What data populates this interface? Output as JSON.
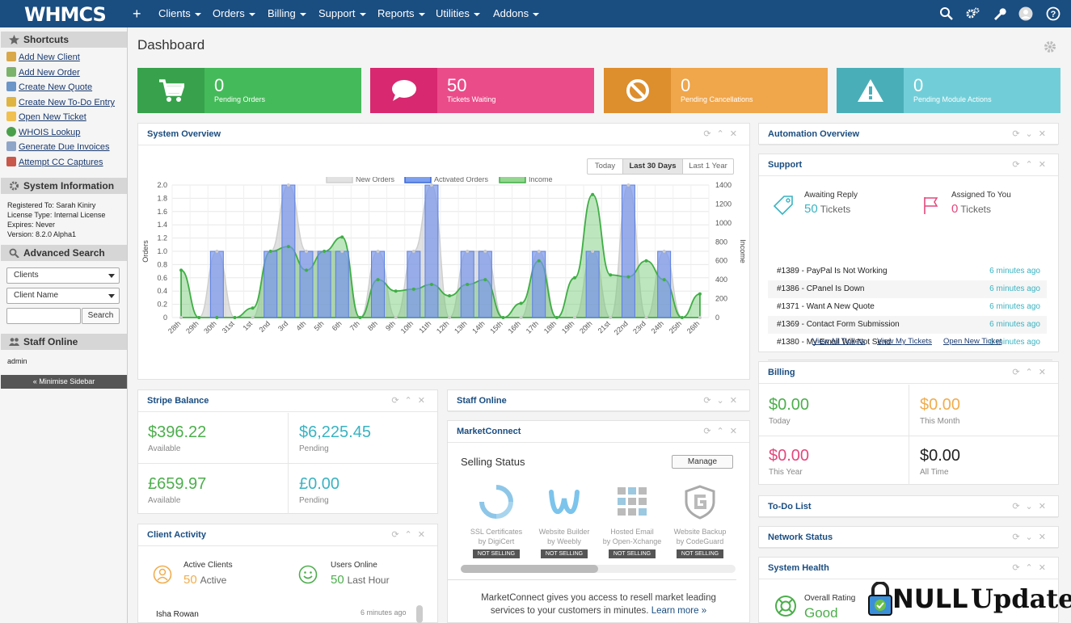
{
  "topnav": {
    "logo": "WHMCS",
    "plus": "+",
    "menus": [
      "Clients",
      "Orders",
      "Billing",
      "Support",
      "Reports",
      "Utilities",
      "Addons"
    ]
  },
  "sidebar": {
    "shortcuts_title": "Shortcuts",
    "shortcuts": [
      "Add New Client",
      "Add New Order",
      "Create New Quote",
      "Create New To-Do Entry",
      "Open New Ticket",
      "WHOIS Lookup",
      "Generate Due Invoices",
      "Attempt CC Captures"
    ],
    "sysinfo_title": "System Information",
    "sysinfo": [
      "Registered To: Sarah Kiniry",
      "License Type: Internal License",
      "Expires: Never",
      "Version: 8.2.0 Alpha1"
    ],
    "search_title": "Advanced Search",
    "search_type": "Clients",
    "search_field": "Client Name",
    "search_button": "Search",
    "staff_title": "Staff Online",
    "staff_name": "admin",
    "minimise": "« Minimise Sidebar"
  },
  "page_title": "Dashboard",
  "stats": [
    {
      "value": "0",
      "label": "Pending Orders",
      "color": "#45ba5a",
      "dark": "#37a24b",
      "icon": "cart-icon"
    },
    {
      "value": "50",
      "label": "Tickets Waiting",
      "color": "#ea4c89",
      "dark": "#d8286f",
      "icon": "comment-icon"
    },
    {
      "value": "0",
      "label": "Pending Cancellations",
      "color": "#f0a64b",
      "dark": "#dd8e2d",
      "icon": "ban-icon"
    },
    {
      "value": "0",
      "label": "Pending Module Actions",
      "color": "#71ced8",
      "dark": "#4aaeb8",
      "icon": "warning-icon"
    }
  ],
  "system_overview": {
    "title": "System Overview",
    "ranges": [
      "Today",
      "Last 30 Days",
      "Last 1 Year"
    ],
    "active_range": "Last 30 Days"
  },
  "chart_data": {
    "type": "line",
    "legend": [
      "New Orders",
      "Activated Orders",
      "Income"
    ],
    "x": [
      "28th",
      "29th",
      "30th",
      "31st",
      "1st",
      "2nd",
      "3rd",
      "4th",
      "5th",
      "6th",
      "7th",
      "8th",
      "9th",
      "10th",
      "11th",
      "12th",
      "13th",
      "14th",
      "15th",
      "16th",
      "17th",
      "18th",
      "19th",
      "20th",
      "21st",
      "22nd",
      "23rd",
      "24th",
      "25th",
      "26th"
    ],
    "series": [
      {
        "name": "New Orders",
        "type": "area",
        "values": [
          0,
          0,
          1,
          0,
          0,
          1,
          2,
          1,
          1,
          1,
          0,
          1,
          0,
          1,
          2,
          0,
          1,
          1,
          0,
          0,
          1,
          0,
          0,
          1,
          0,
          2,
          0,
          1,
          0,
          0
        ]
      },
      {
        "name": "Activated Orders",
        "type": "bar",
        "values": [
          0,
          0,
          1,
          0,
          0,
          1,
          2,
          1,
          1,
          1,
          0,
          1,
          0,
          1,
          2,
          0,
          1,
          1,
          0,
          0,
          1,
          0,
          0,
          1,
          0,
          2,
          0,
          1,
          0,
          0
        ]
      },
      {
        "name": "Income",
        "type": "area",
        "axis": "right",
        "values": [
          500,
          0,
          0,
          0,
          100,
          700,
          750,
          500,
          700,
          850,
          0,
          400,
          280,
          300,
          350,
          230,
          350,
          400,
          0,
          150,
          600,
          0,
          420,
          1300,
          450,
          430,
          600,
          400,
          0,
          250
        ]
      }
    ],
    "ylabel": "Orders",
    "y2label": "Income",
    "ylim": [
      0,
      2
    ],
    "y2lim": [
      0,
      1400
    ],
    "yticks": [
      "2.0",
      "1.8",
      "1.6",
      "1.4",
      "1.2",
      "1.0",
      "0.8",
      "0.6",
      "0.4",
      "0.2",
      "0"
    ],
    "y2ticks": [
      "1400",
      "1200",
      "1000",
      "800",
      "600",
      "400",
      "200",
      "0"
    ],
    "grid": true,
    "legend_position": "top"
  },
  "stripe": {
    "title": "Stripe Balance",
    "cells": [
      {
        "amount": "$396.22",
        "label": "Available"
      },
      {
        "amount": "$6,225.45",
        "label": "Pending"
      },
      {
        "amount": "£659.97",
        "label": "Available"
      },
      {
        "amount": "£0.00",
        "label": "Pending"
      }
    ]
  },
  "client_activity": {
    "title": "Client Activity",
    "active_label": "Active Clients",
    "active_num": "50",
    "active_text": "Active",
    "online_label": "Users Online",
    "online_num": "50",
    "online_text": "Last Hour",
    "row_name": "Isha Rowan",
    "row_time": "6 minutes ago"
  },
  "staff_online_panel": {
    "title": "Staff Online"
  },
  "marketconnect": {
    "title": "MarketConnect",
    "status_title": "Selling Status",
    "manage": "Manage",
    "products": [
      {
        "name": "SSL Certificates",
        "by": "by DigiCert"
      },
      {
        "name": "Website Builder",
        "by": "by Weebly"
      },
      {
        "name": "Hosted Email",
        "by": "by Open-Xchange"
      },
      {
        "name": "Website Backup",
        "by": "by CodeGuard"
      }
    ],
    "not_selling": "NOT SELLING",
    "footer1": "MarketConnect gives you access to resell market leading",
    "footer2": "services to your customers in minutes.",
    "learn_more": "Learn more »"
  },
  "automation": {
    "title": "Automation Overview"
  },
  "support": {
    "title": "Support",
    "awaiting_label": "Awaiting Reply",
    "awaiting_num": "50",
    "awaiting_text": "Tickets",
    "assigned_label": "Assigned To You",
    "assigned_num": "0",
    "assigned_text": "Tickets",
    "tickets": [
      {
        "subject": "#1389 - PayPal Is Not Working",
        "time": "6 minutes ago"
      },
      {
        "subject": "#1386 - CPanel Is Down",
        "time": "6 minutes ago"
      },
      {
        "subject": "#1371 - Want A New Quote",
        "time": "6 minutes ago"
      },
      {
        "subject": "#1369 - Contact Form Submission",
        "time": "6 minutes ago"
      },
      {
        "subject": "#1380 - My Email Will Not Send",
        "time": "6 minutes ago"
      }
    ],
    "links": [
      "View All Tickets",
      "View My Tickets",
      "Open New Ticket"
    ]
  },
  "billing": {
    "title": "Billing",
    "cells": [
      {
        "amount": "$0.00",
        "label": "Today"
      },
      {
        "amount": "$0.00",
        "label": "This Month"
      },
      {
        "amount": "$0.00",
        "label": "This Year"
      },
      {
        "amount": "$0.00",
        "label": "All Time"
      }
    ]
  },
  "todo": {
    "title": "To-Do List"
  },
  "network": {
    "title": "Network Status"
  },
  "health": {
    "title": "System Health",
    "rating_label": "Overall Rating",
    "rating": "Good"
  },
  "watermark": {
    "text1": "NULL",
    "text2": "Update"
  },
  "colors": {
    "navbar": "#1a4d80",
    "accent": "#1a4d80",
    "green": "#4cae4c",
    "teal": "#39b3c2"
  }
}
